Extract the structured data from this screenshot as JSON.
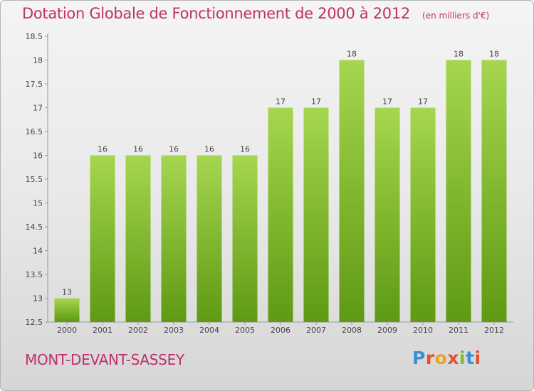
{
  "chart_data": {
    "type": "bar",
    "title": "Dotation Globale de Fonctionnement de 2000 à 2012",
    "unit": "(en milliers d'€)",
    "categories": [
      "2000",
      "2001",
      "2002",
      "2003",
      "2004",
      "2005",
      "2006",
      "2007",
      "2008",
      "2009",
      "2010",
      "2011",
      "2012"
    ],
    "values": [
      13,
      16,
      16,
      16,
      16,
      16,
      17,
      17,
      18,
      17,
      17,
      18,
      18
    ],
    "ylim": [
      12.5,
      18.5
    ],
    "yticks": [
      "12.5",
      "13",
      "13.5",
      "14",
      "14.5",
      "15",
      "15.5",
      "16",
      "16.5",
      "17",
      "17.5",
      "18",
      "18.5"
    ],
    "grid": false,
    "colors": {
      "bar_light": "#a6d64f",
      "bar_dark": "#5e9a12"
    }
  },
  "footer": {
    "commune": "MONT-DEVANT-SASSEY",
    "brand_letters": [
      {
        "ch": "P",
        "color": "#3a8fd6"
      },
      {
        "ch": "r",
        "color": "#e0522b"
      },
      {
        "ch": "o",
        "color": "#f2a02a"
      },
      {
        "ch": "x",
        "color": "#e0522b"
      },
      {
        "ch": "i",
        "color": "#7bbb2e"
      },
      {
        "ch": "t",
        "color": "#3a8fd6"
      },
      {
        "ch": "i",
        "color": "#e0522b"
      }
    ]
  }
}
